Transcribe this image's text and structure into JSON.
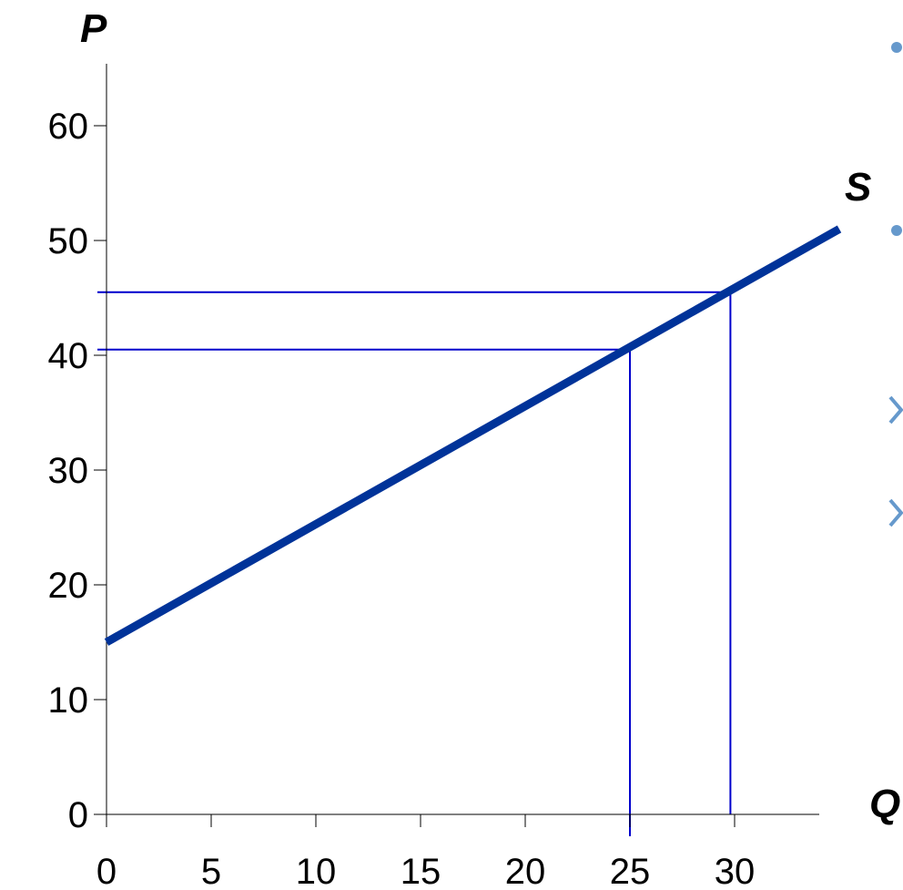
{
  "chart_data": {
    "type": "line",
    "ylabel": "P",
    "xlabel": "Q",
    "xlim": [
      0,
      34
    ],
    "ylim": [
      0,
      65
    ],
    "x_ticks": [
      0,
      5,
      10,
      15,
      20,
      25,
      30
    ],
    "y_ticks": [
      0,
      10,
      20,
      30,
      40,
      50,
      60
    ],
    "series": [
      {
        "name": "S",
        "color": "#003399",
        "points": [
          [
            0,
            15
          ],
          [
            35,
            51
          ]
        ]
      }
    ],
    "reference_points": [
      {
        "x": 25,
        "y": 40.5,
        "color": "#0000cc"
      },
      {
        "x": 29.8,
        "y": 45.5,
        "color": "#0000cc"
      }
    ]
  },
  "slide_bullets": {
    "bullet_color": "#6699cc",
    "arrow_color": "#6699cc",
    "bullet_icon": "round-bullet-icon",
    "arrow_icon": "chevron-bullet-icon"
  }
}
